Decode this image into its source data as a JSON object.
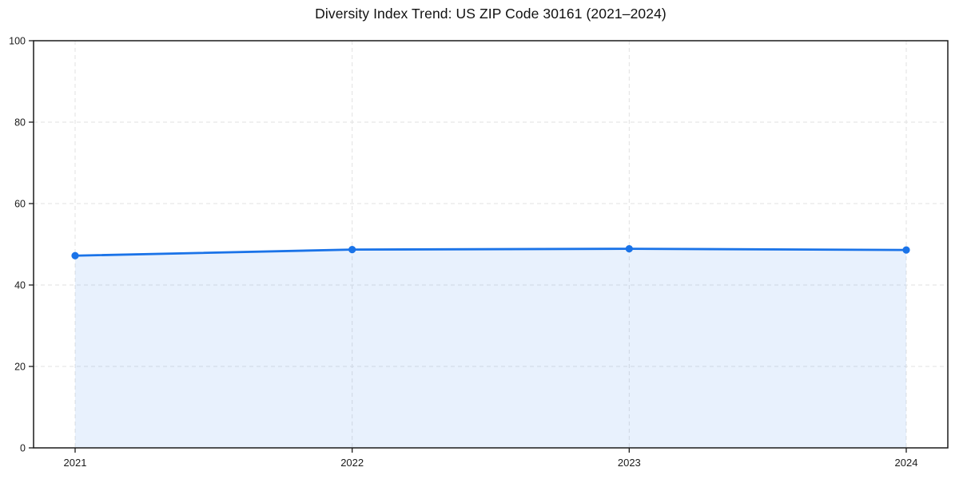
{
  "page": {
    "title": "Diversity Index Trend: US ZIP Code 30161 (2021–2024)"
  },
  "chart_data": {
    "type": "area",
    "title": "Diversity Index Trend: US ZIP Code 30161 (2021–2024)",
    "categories": [
      "2021",
      "2022",
      "2023",
      "2024"
    ],
    "values": [
      47.2,
      48.7,
      48.9,
      48.6
    ],
    "xlabel": "",
    "ylabel": "",
    "ylim": [
      0,
      100
    ],
    "yticks": [
      0,
      20,
      40,
      60,
      80,
      100
    ],
    "grid": true,
    "grid_style": "dashed",
    "legend_position": "none",
    "colors": {
      "line": "#1a73e8",
      "marker": "#1a73e8",
      "fill": "rgba(26,115,232,0.10)",
      "grid": "#e2e2e2",
      "frame": "#1a1a1a",
      "tick_text": "#1a1a1a",
      "background": "#ffffff"
    }
  }
}
